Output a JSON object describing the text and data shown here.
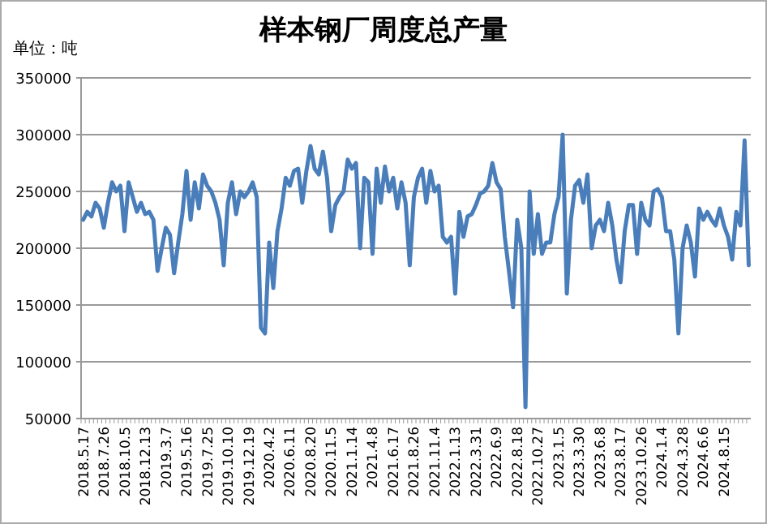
{
  "chart_data": {
    "type": "line",
    "title": "样本钢厂周度总产量",
    "ylabel": "单位：吨",
    "categories": [
      "2018.5.17",
      null,
      null,
      null,
      null,
      "2018.7.26",
      null,
      null,
      null,
      null,
      "2018.10.5",
      null,
      null,
      null,
      null,
      "2018.12.13",
      null,
      null,
      null,
      null,
      "2019.3.7",
      null,
      null,
      null,
      null,
      "2019.5.16",
      null,
      null,
      null,
      null,
      "2019.7.25",
      null,
      null,
      null,
      null,
      "2019.10.10",
      null,
      null,
      null,
      null,
      "2019.12.19",
      null,
      null,
      null,
      null,
      "2020.4.2",
      null,
      null,
      null,
      null,
      "2020.6.11",
      null,
      null,
      null,
      null,
      "2020.8.20",
      null,
      null,
      null,
      null,
      "2020.11.5",
      null,
      null,
      null,
      null,
      "2021.1.14",
      null,
      null,
      null,
      null,
      "2021.4.8",
      null,
      null,
      null,
      null,
      "2021.6.17",
      null,
      null,
      null,
      null,
      "2021.8.26",
      null,
      null,
      null,
      null,
      "2021.11.4",
      null,
      null,
      null,
      null,
      "2022.1.13",
      null,
      null,
      null,
      null,
      "2022.3.31",
      null,
      null,
      null,
      null,
      "2022.6.9",
      null,
      null,
      null,
      null,
      "2022.8.18",
      null,
      null,
      null,
      null,
      "2022.10.27",
      null,
      null,
      null,
      null,
      "2023.1.5",
      null,
      null,
      null,
      null,
      "2023.3.30",
      null,
      null,
      null,
      null,
      "2023.6.8",
      null,
      null,
      null,
      null,
      "2023.8.17",
      null,
      null,
      null,
      null,
      "2023.10.26",
      null,
      null,
      null,
      null,
      "2024.1.4",
      null,
      null,
      null,
      null,
      "2024.3.28",
      null,
      null,
      null,
      null,
      "2024.6.6",
      null,
      null,
      null,
      null,
      "2024.8.15",
      null,
      null,
      null,
      null,
      null,
      null
    ],
    "values": [
      225000,
      232000,
      228000,
      240000,
      235000,
      218000,
      240000,
      258000,
      250000,
      255000,
      215000,
      258000,
      245000,
      232000,
      240000,
      230000,
      232000,
      225000,
      180000,
      200000,
      218000,
      212000,
      178000,
      205000,
      230000,
      268000,
      225000,
      258000,
      235000,
      265000,
      255000,
      250000,
      240000,
      225000,
      185000,
      240000,
      258000,
      230000,
      250000,
      245000,
      250000,
      258000,
      245000,
      130000,
      125000,
      205000,
      165000,
      215000,
      235000,
      262000,
      255000,
      268000,
      270000,
      240000,
      268000,
      290000,
      270000,
      265000,
      285000,
      262000,
      215000,
      238000,
      245000,
      250000,
      278000,
      270000,
      275000,
      200000,
      262000,
      258000,
      195000,
      270000,
      240000,
      272000,
      250000,
      262000,
      235000,
      258000,
      240000,
      185000,
      245000,
      262000,
      270000,
      240000,
      268000,
      250000,
      255000,
      210000,
      205000,
      210000,
      160000,
      232000,
      210000,
      228000,
      230000,
      238000,
      248000,
      250000,
      255000,
      275000,
      258000,
      252000,
      210000,
      180000,
      148000,
      225000,
      200000,
      60000,
      250000,
      195000,
      230000,
      195000,
      205000,
      205000,
      230000,
      245000,
      300000,
      160000,
      225000,
      255000,
      260000,
      240000,
      265000,
      200000,
      220000,
      225000,
      215000,
      240000,
      220000,
      190000,
      170000,
      215000,
      238000,
      238000,
      195000,
      240000,
      225000,
      220000,
      250000,
      252000,
      245000,
      215000,
      215000,
      190000,
      125000,
      200000,
      220000,
      205000,
      175000,
      235000,
      225000,
      232000,
      225000,
      220000,
      235000,
      220000,
      210000,
      190000,
      232000,
      220000,
      295000,
      185000
    ],
    "color": "#4a7ebb",
    "ylim": [
      50000,
      350000
    ],
    "yticks": [
      50000,
      100000,
      150000,
      200000,
      250000,
      300000,
      350000
    ],
    "grid": "y"
  }
}
